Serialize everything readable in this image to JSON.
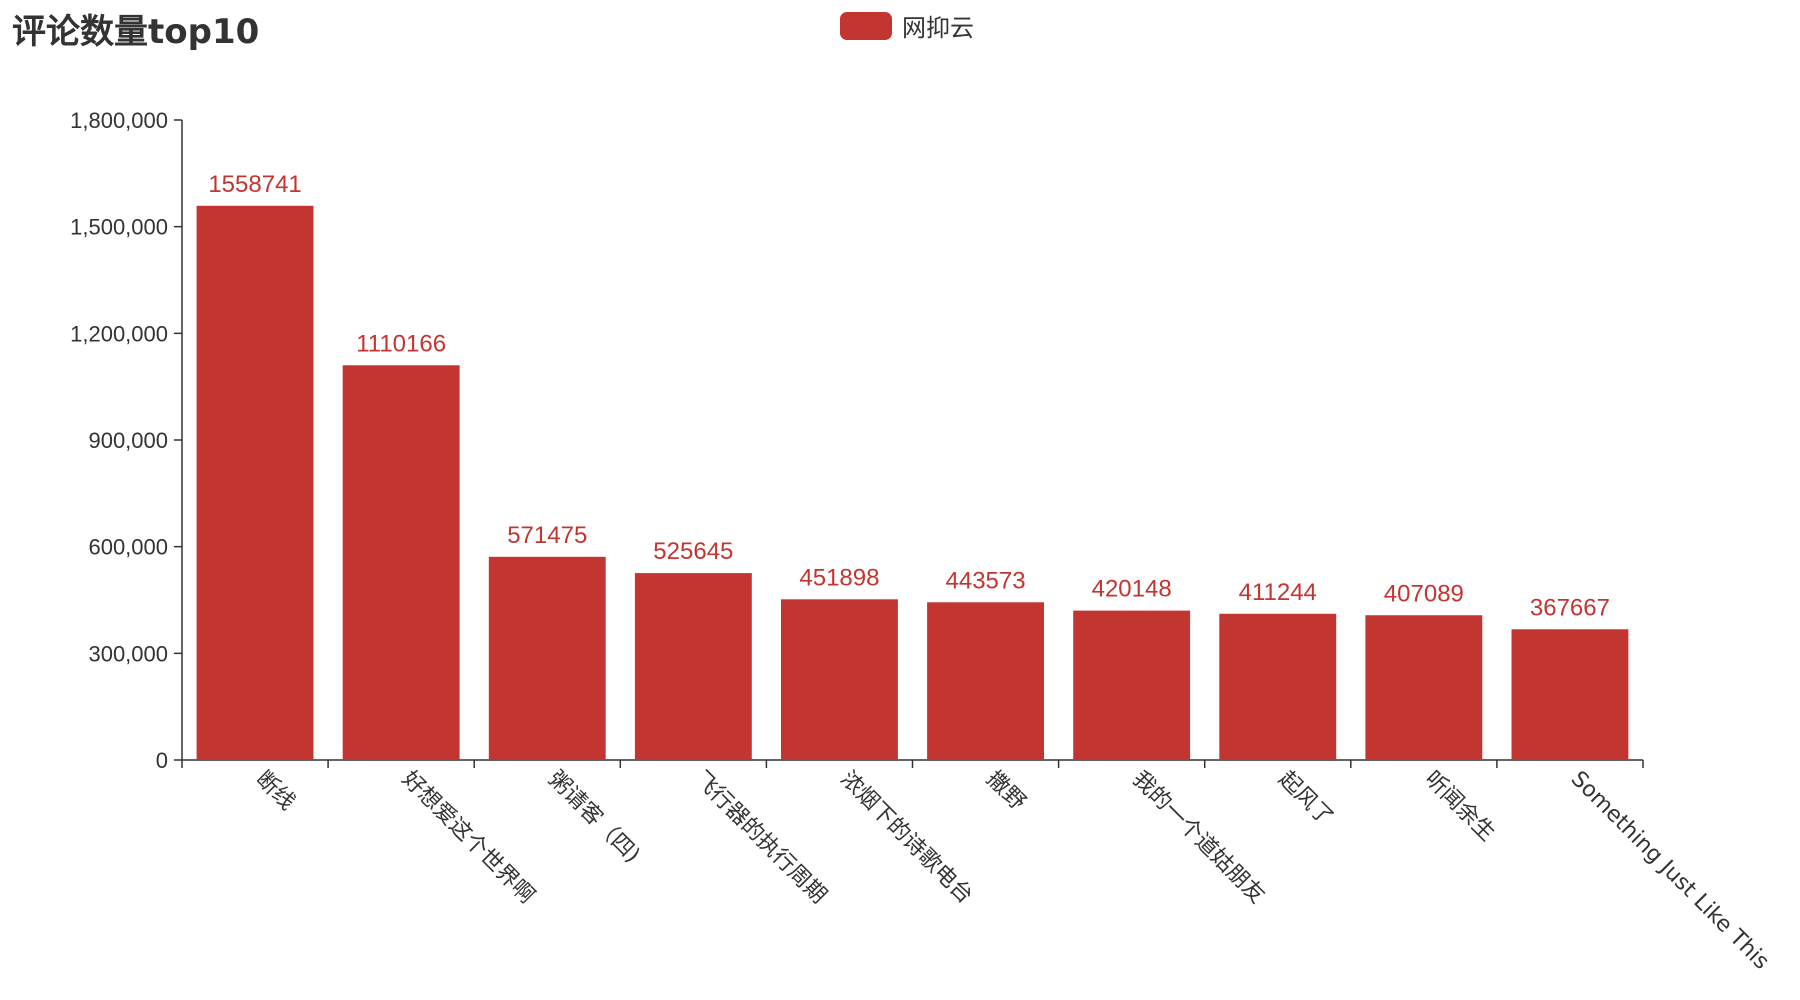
{
  "title": "评论数量top10",
  "legend": {
    "label": "网抑云",
    "color": "#c23531"
  },
  "chart_data": {
    "type": "bar",
    "title": "评论数量top10",
    "categories": [
      "断线",
      "好想爱这个世界啊",
      "粥请客（四)",
      "飞行器的执行周期",
      "浓烟下的诗歌电台",
      "撒野",
      "我的一个道姑朋友",
      "起风了",
      "听闻余生",
      "Something Just Like This"
    ],
    "series": [
      {
        "name": "网抑云",
        "color": "#c23531",
        "values": [
          1558741,
          1110166,
          571475,
          525645,
          451898,
          443573,
          420148,
          411244,
          407089,
          367667
        ]
      }
    ],
    "data_labels": [
      "1558741",
      "1110166",
      "571475",
      "525645",
      "451898",
      "443573",
      "420148",
      "411244",
      "407089",
      "367667"
    ],
    "y_ticks": [
      "0",
      "300,000",
      "600,000",
      "900,000",
      "1,200,000",
      "1,500,000",
      "1,800,000"
    ],
    "ylim": [
      0,
      1800000
    ],
    "grid": false,
    "legend_position": "top-center"
  }
}
